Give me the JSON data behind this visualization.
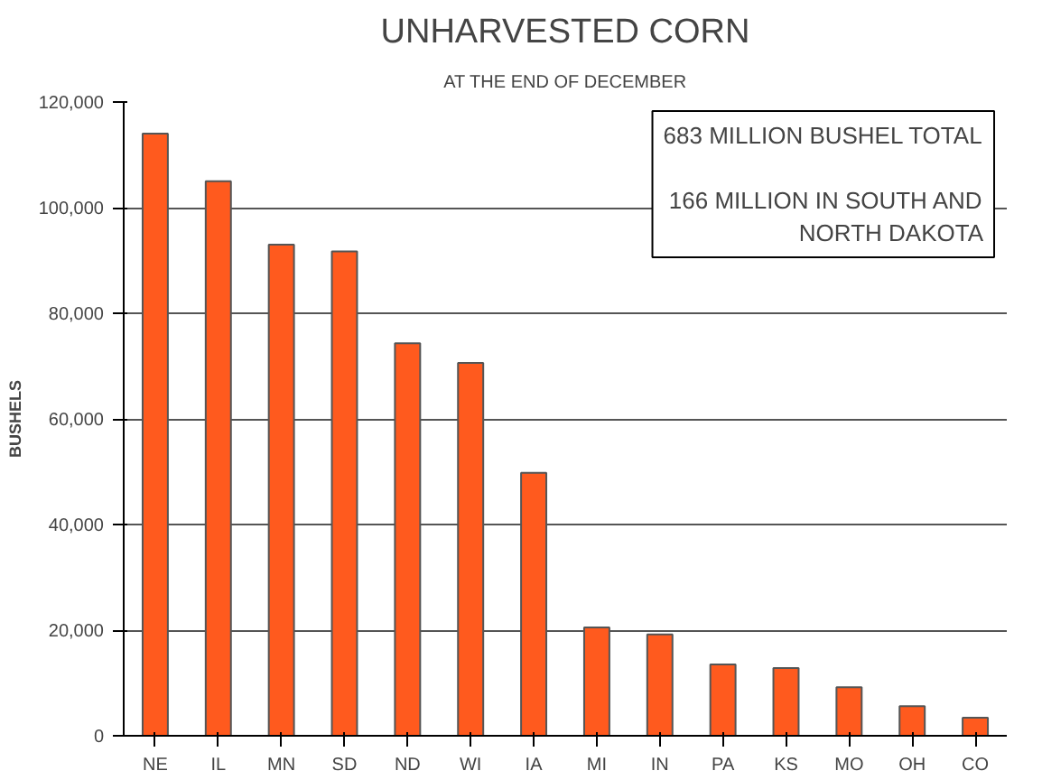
{
  "chart_data": {
    "type": "bar",
    "title": "UNHARVESTED CORN",
    "subtitle": "AT THE END OF DECEMBER",
    "ylabel": "BUSHELS",
    "categories": [
      "NE",
      "IL",
      "MN",
      "SD",
      "ND",
      "WI",
      "IA",
      "MI",
      "IN",
      "PA",
      "KS",
      "MO",
      "OH",
      "CO"
    ],
    "values": [
      114000,
      105000,
      93000,
      91700,
      74300,
      70600,
      49800,
      20500,
      19200,
      13500,
      12800,
      9200,
      5600,
      3400
    ],
    "color": "#ff5a1e",
    "ylim": [
      0,
      120000
    ],
    "yticks": [
      0,
      {
        "value": 20000,
        "label": "20,000"
      },
      {
        "value": 40000,
        "label": "40,000"
      },
      {
        "value": 60000,
        "label": "60,000"
      },
      {
        "value": 80000,
        "label": "80,000"
      },
      {
        "value": 100000,
        "label": "100,000"
      },
      {
        "value": 120000,
        "label": "120,000"
      }
    ],
    "grid": "y",
    "annotations": [
      "683 MILLION BUSHEL TOTAL",
      "166 MILLION IN SOUTH AND\nNORTH DAKOTA"
    ]
  }
}
